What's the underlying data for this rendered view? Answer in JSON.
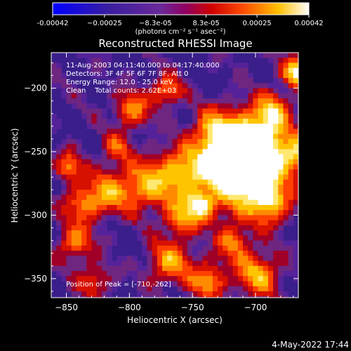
{
  "chart_data": {
    "type": "heatmap",
    "title": "Reconstructed RHESSI Image",
    "xlabel": "Heliocentric X (arcsec)",
    "ylabel": "Heliocentric Y (arcsec)",
    "xlim": [
      -862,
      -666
    ],
    "ylim": [
      -365,
      -172
    ],
    "xticks": [
      -850,
      -800,
      -750,
      -700
    ],
    "xtick_labels": [
      "−850",
      "−800",
      "−750",
      "−700"
    ],
    "yticks": [
      -200,
      -250,
      -300,
      -350
    ],
    "ytick_labels": [
      "−200",
      "−250",
      "−300",
      "−350"
    ],
    "colorbar": {
      "range": [
        -0.00042,
        0.00042
      ],
      "ticks": [
        -0.00042,
        -0.00025,
        -8.3e-05,
        8.3e-05,
        0.00025,
        0.00042
      ],
      "tick_labels": [
        "-0.00042",
        "−0.00025",
        "−8.3e-05",
        "8.3e-05",
        "0.00025",
        "0.00042"
      ],
      "units_label": "(photons cm⁻² s⁻¹ asec⁻²)"
    },
    "annotations": [
      "11-Aug-2003 04:11:40.000 to 04:17:40.000",
      "Detectors: 3F 4F 5F 6F 7F 8F, Att 0",
      "Energy Range: 12.0 - 25.0 keV",
      "Clean    Total counts: 2.62E+03"
    ],
    "peak_label": "Position of Peak = [-710,-262]",
    "peak": [
      -710,
      -262
    ],
    "grid": false,
    "colors": [
      "#0000ff",
      "#3a1e9a",
      "#5a2aa0",
      "#7a2a8a",
      "#c00000",
      "#ff3000",
      "#ff8000",
      "#ffd000",
      "#ffffff"
    ]
  },
  "footer_date": "4-May-2022 17:44"
}
